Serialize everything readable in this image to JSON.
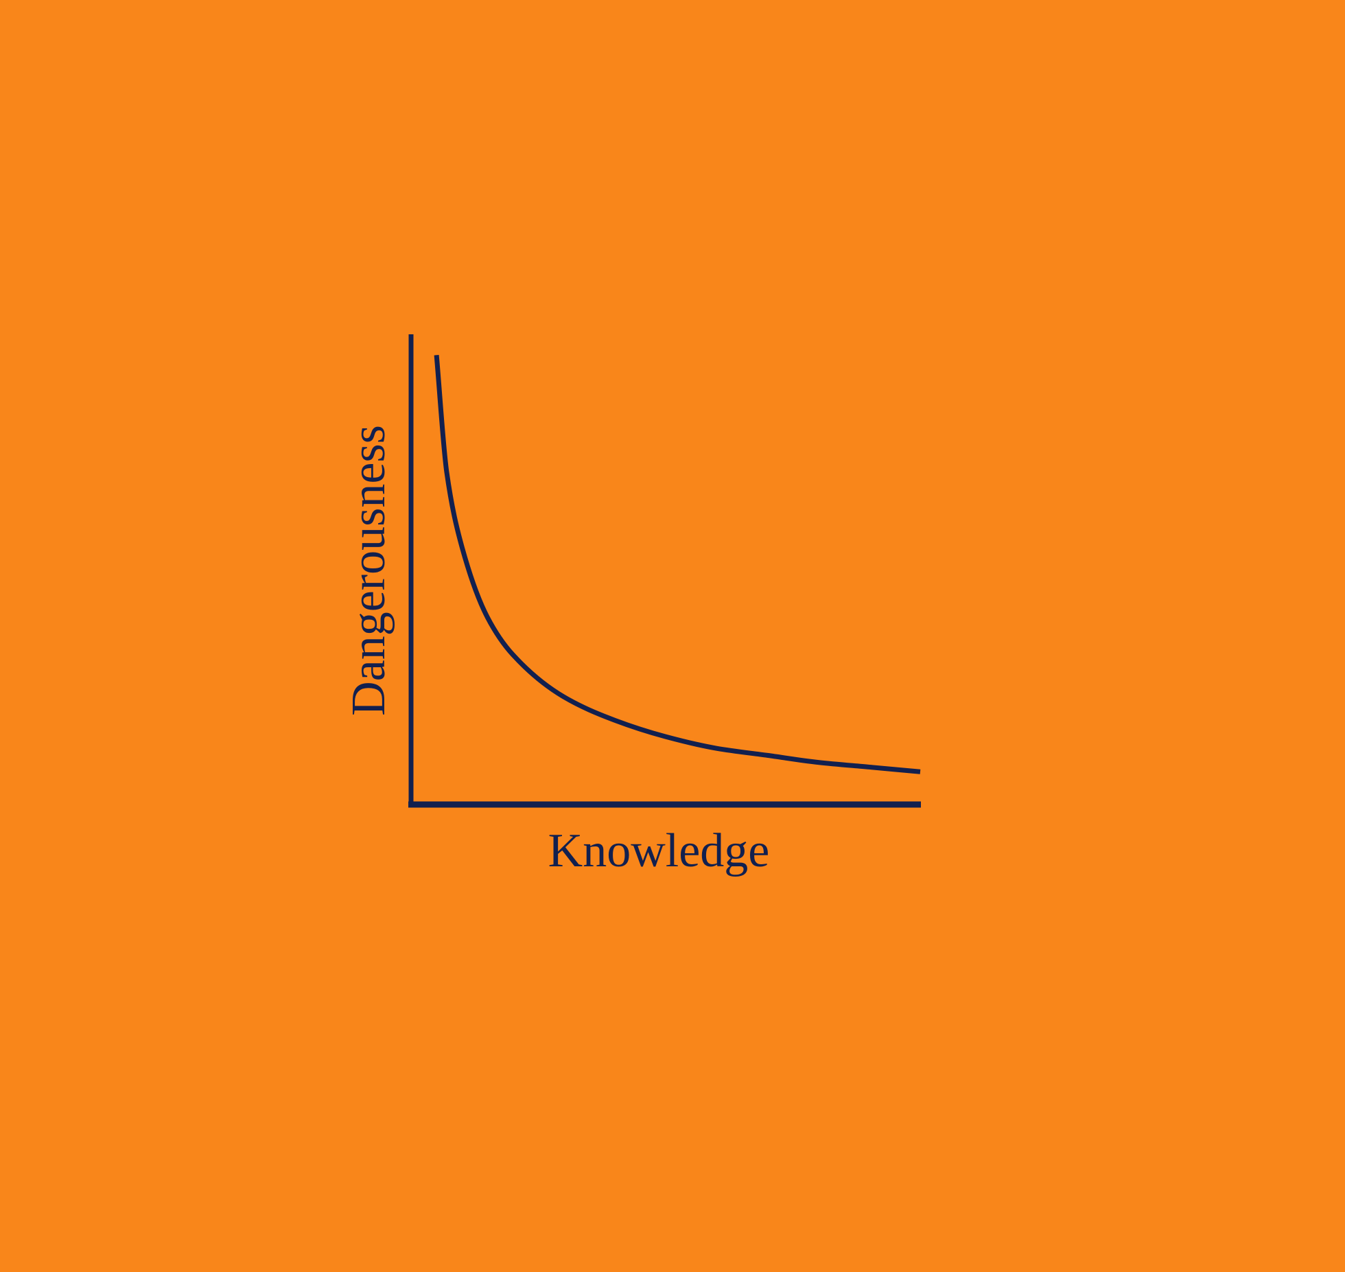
{
  "chart_data": {
    "type": "line",
    "title": "",
    "xlabel": "Knowledge",
    "ylabel": "Dangerousness",
    "xticks": [],
    "yticks": [],
    "grid": false,
    "legend": "none",
    "series": [
      {
        "x": [
          0.05,
          0.07,
          0.1,
          0.15,
          0.2,
          0.3,
          0.4,
          0.5,
          0.6,
          0.7,
          0.8,
          0.9,
          1.0
        ],
        "values": [
          0.96,
          0.71,
          0.55,
          0.4,
          0.32,
          0.23,
          0.18,
          0.145,
          0.12,
          0.105,
          0.09,
          0.08,
          0.07
        ]
      }
    ],
    "xlim": [
      0,
      1
    ],
    "ylim": [
      0,
      1
    ]
  },
  "colors": {
    "background": "#F9861A",
    "ink": "#12204F"
  }
}
